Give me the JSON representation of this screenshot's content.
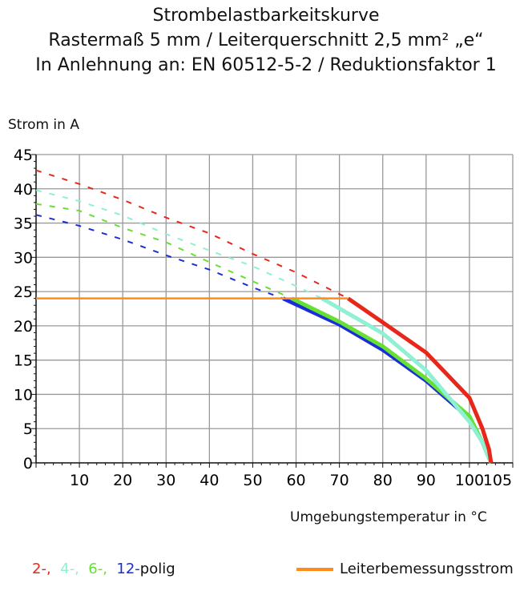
{
  "titles": [
    "Strombelastbarkeitskurve",
    "Rastermaß 5 mm / Leiterquerschnitt 2,5 mm² „e“",
    "In Anlehnung an: EN 60512-5-2 / Reduktionsfaktor 1"
  ],
  "chart_data": {
    "type": "line",
    "title": "Strombelastbarkeitskurve",
    "ylabel": "Strom in A",
    "xlabel": "Umgebungstemperatur in °C",
    "xlim": [
      0,
      110
    ],
    "ylim": [
      0,
      45
    ],
    "xticks": [
      10,
      20,
      30,
      40,
      50,
      60,
      70,
      80,
      90,
      100,
      105
    ],
    "yticks": [
      0,
      5,
      10,
      15,
      20,
      25,
      30,
      35,
      40,
      45
    ],
    "grid": true,
    "series": [
      {
        "name": "2-",
        "color": "#e8271b",
        "dashed": [
          [
            0,
            42.7
          ],
          [
            10,
            40.7
          ],
          [
            20,
            38.4
          ],
          [
            30,
            35.8
          ],
          [
            40,
            33.5
          ],
          [
            50,
            30.5
          ],
          [
            60,
            27.8
          ],
          [
            72,
            24
          ]
        ],
        "solid": [
          [
            72,
            24
          ],
          [
            80,
            20.5
          ],
          [
            90,
            16.1
          ],
          [
            100,
            9.5
          ],
          [
            103,
            5
          ],
          [
            104.5,
            2
          ],
          [
            105,
            0
          ]
        ]
      },
      {
        "name": "4-",
        "color": "#8ff0d4",
        "dashed": [
          [
            0,
            39.8
          ],
          [
            10,
            38.2
          ],
          [
            20,
            36.1
          ],
          [
            30,
            33.4
          ],
          [
            40,
            31
          ],
          [
            50,
            28.7
          ],
          [
            60,
            25.8
          ],
          [
            66,
            24
          ]
        ],
        "solid": [
          [
            66,
            24
          ],
          [
            80,
            18.9
          ],
          [
            90,
            13.5
          ],
          [
            100,
            6
          ],
          [
            103,
            3
          ],
          [
            105,
            0
          ]
        ]
      },
      {
        "name": "6-",
        "color": "#66e033",
        "dashed": [
          [
            0,
            37.8
          ],
          [
            10,
            36.8
          ],
          [
            20,
            34.3
          ],
          [
            30,
            32.2
          ],
          [
            40,
            29.3
          ],
          [
            50,
            26.5
          ],
          [
            59,
            24
          ]
        ],
        "solid": [
          [
            59,
            24
          ],
          [
            70,
            20.6
          ],
          [
            80,
            17
          ],
          [
            90,
            12.3
          ],
          [
            100,
            6.8
          ],
          [
            103,
            3
          ],
          [
            105,
            0
          ]
        ]
      },
      {
        "name": "12-",
        "color": "#1a2ed8",
        "dashed": [
          [
            0,
            36.2
          ],
          [
            10,
            34.6
          ],
          [
            20,
            32.6
          ],
          [
            30,
            30.3
          ],
          [
            40,
            28.2
          ],
          [
            50,
            25.6
          ],
          [
            57,
            24
          ]
        ],
        "solid": [
          [
            57,
            24
          ],
          [
            70,
            20.2
          ],
          [
            80,
            16.5
          ],
          [
            90,
            12
          ],
          [
            100,
            6.5
          ],
          [
            103,
            3
          ],
          [
            105,
            0
          ]
        ]
      },
      {
        "name": "Leiterbemessungsstrom",
        "color": "#ff8c1a",
        "solid": [
          [
            0,
            24
          ],
          [
            72,
            24
          ]
        ]
      }
    ]
  },
  "legend": {
    "poles": [
      "2-,",
      "4-,",
      "6-,",
      "12-"
    ],
    "poles_suffix": "polig",
    "rated": "Leiterbemessungsstrom"
  }
}
